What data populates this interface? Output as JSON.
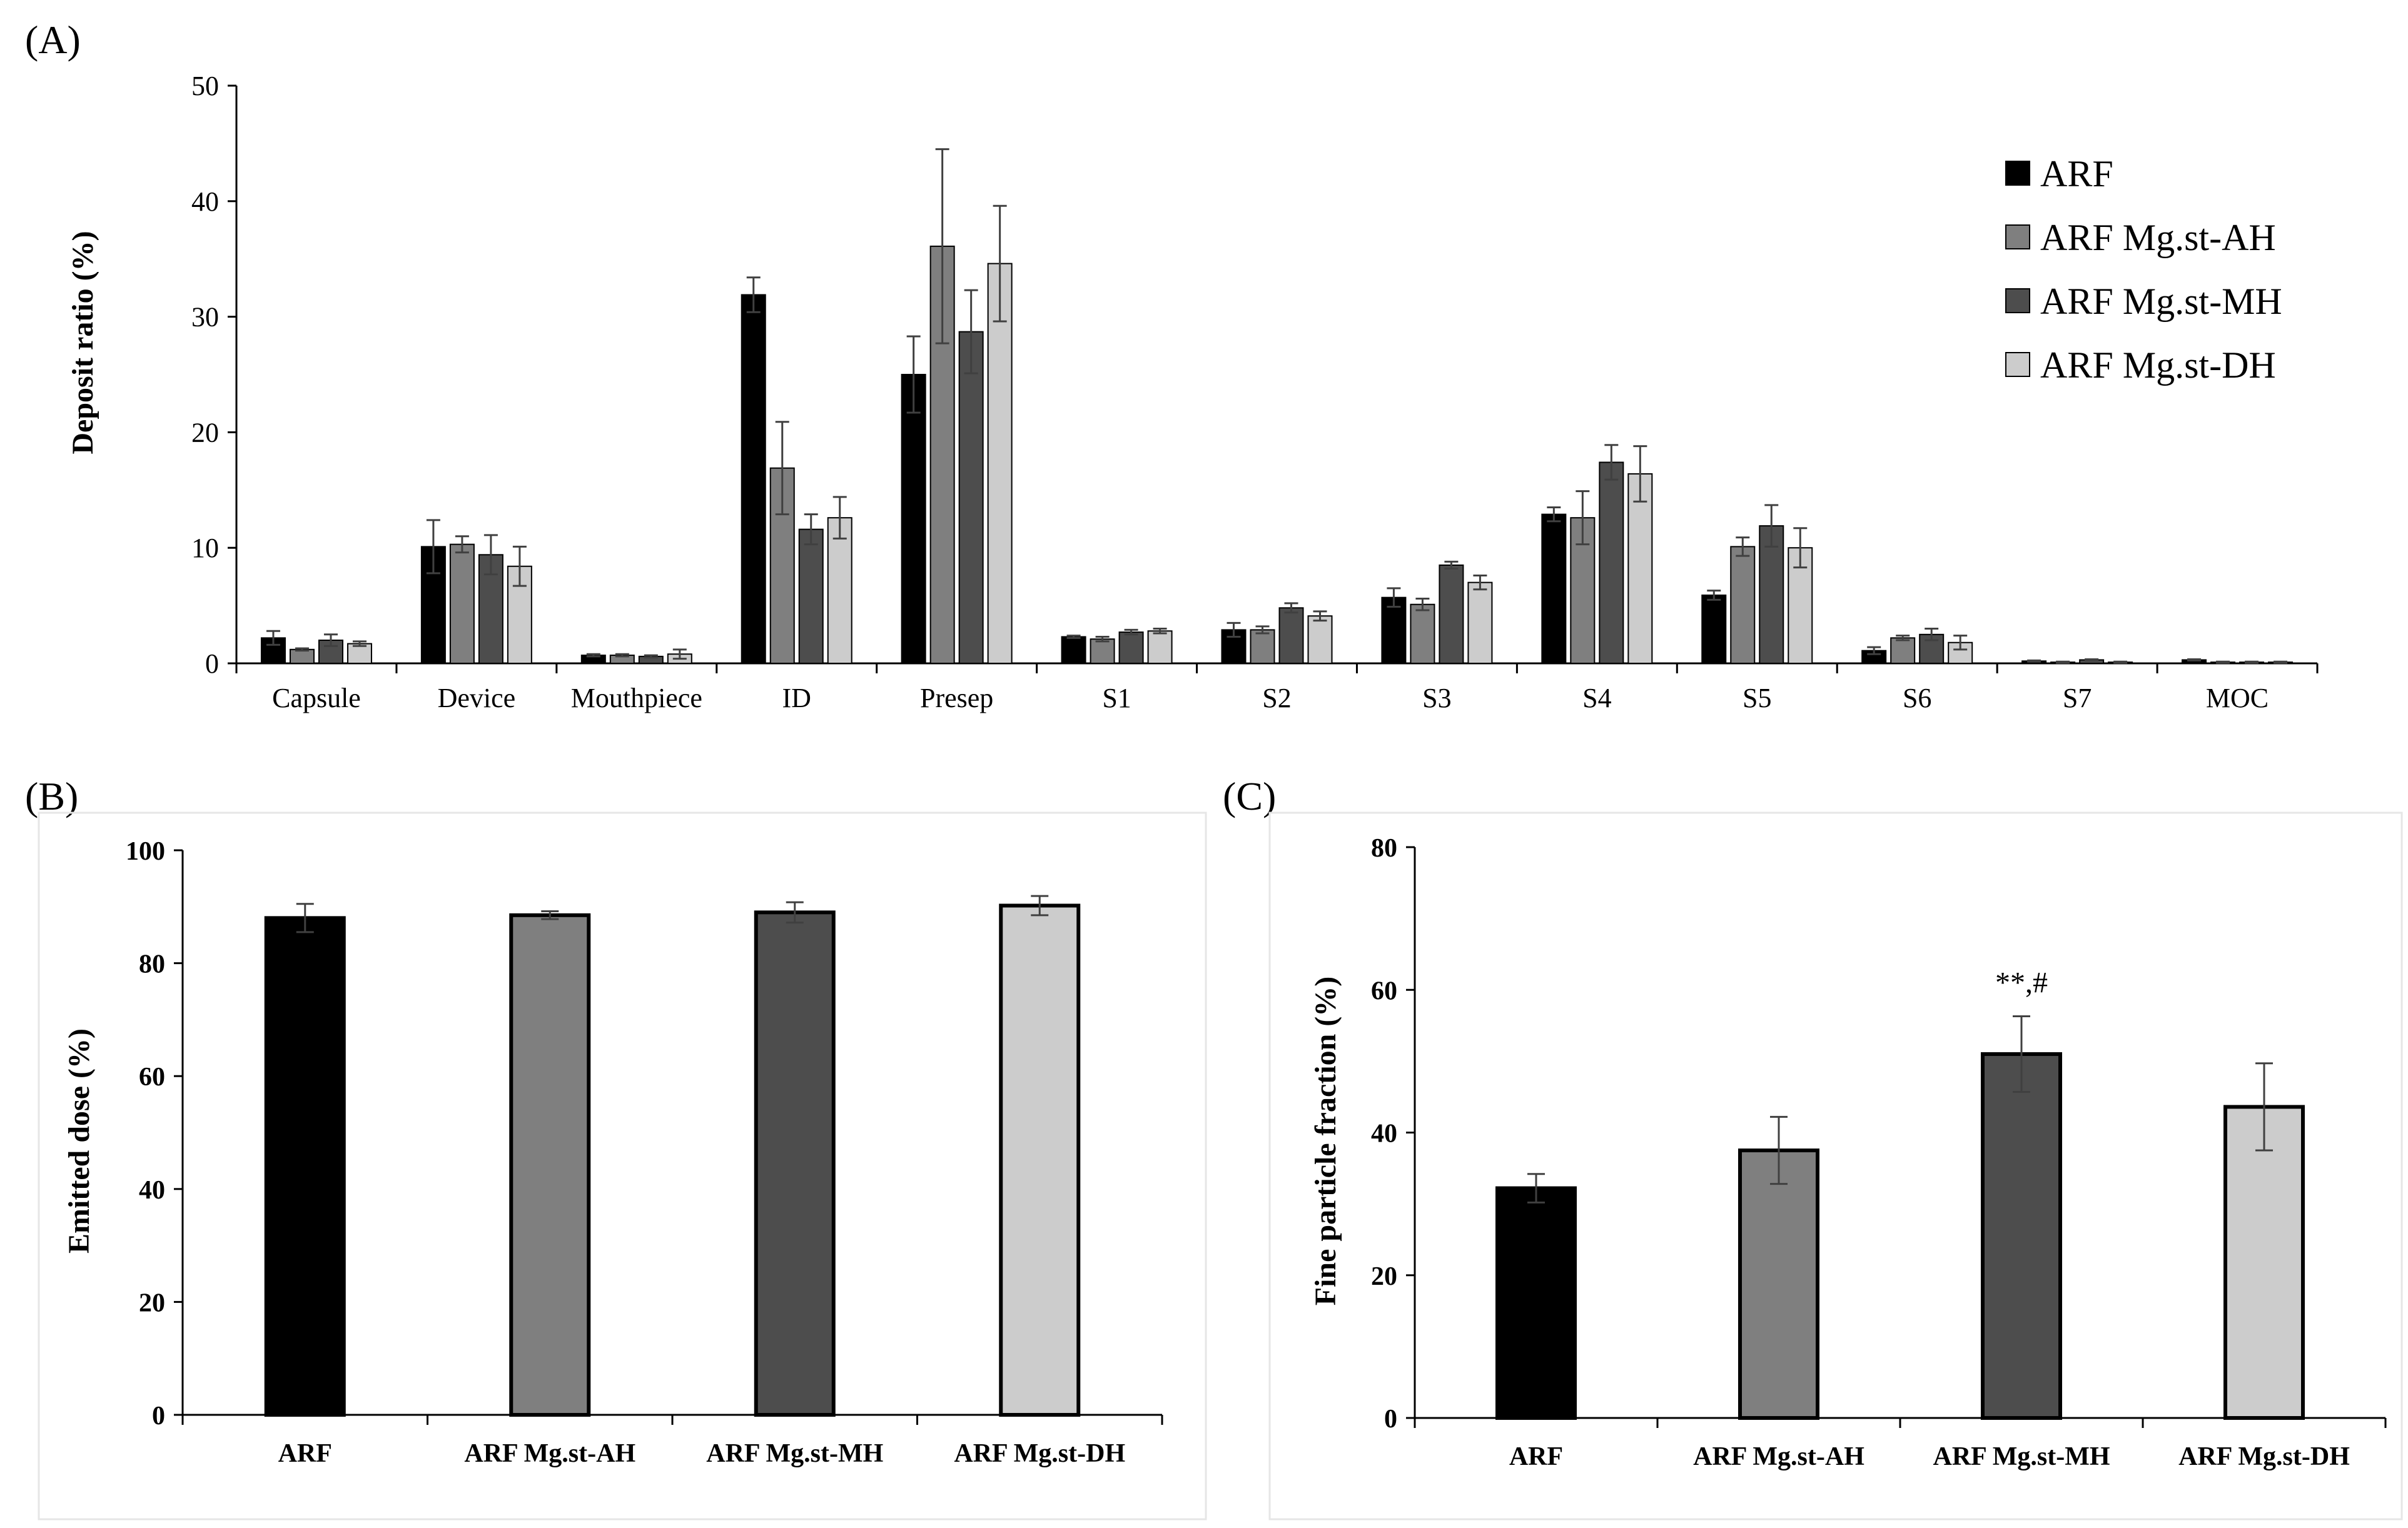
{
  "colors": {
    "ARF": "#000000",
    "AH": "#7f7f7f",
    "MH": "#4d4d4d",
    "DH": "#cccccc",
    "error": "#404040"
  },
  "chart_data": [
    {
      "panel": "(A)",
      "type": "bar",
      "title": "",
      "xlabel": "",
      "ylabel": "Deposit ratio (%)",
      "ylim": [
        0,
        50
      ],
      "yticks": [
        "0",
        "10",
        "20",
        "30",
        "40",
        "50"
      ],
      "categories": [
        "Capsule",
        "Device",
        "Mouthpiece",
        "ID",
        "Presep",
        "S1",
        "S2",
        "S3",
        "S4",
        "S5",
        "S6",
        "S7",
        "MOC"
      ],
      "legend_position": "top-right",
      "series": [
        {
          "name": "ARF",
          "color_key": "ARF",
          "values": [
            2.2,
            10.1,
            0.7,
            31.9,
            25.0,
            2.3,
            2.9,
            5.7,
            12.9,
            5.9,
            1.1,
            0.2,
            0.3
          ],
          "errors": [
            0.6,
            2.3,
            0.1,
            1.5,
            3.3,
            0.1,
            0.6,
            0.8,
            0.6,
            0.4,
            0.3,
            0.05,
            0.05
          ]
        },
        {
          "name": "ARF Mg.st-AH",
          "color_key": "AH",
          "values": [
            1.2,
            10.3,
            0.7,
            16.9,
            36.1,
            2.1,
            2.9,
            5.1,
            12.6,
            10.1,
            2.2,
            0.1,
            0.1
          ],
          "errors": [
            0.1,
            0.7,
            0.1,
            4.0,
            8.4,
            0.2,
            0.3,
            0.5,
            2.3,
            0.8,
            0.2,
            0.05,
            0.05
          ]
        },
        {
          "name": "ARF Mg.st-MH",
          "color_key": "MH",
          "values": [
            2.0,
            9.4,
            0.6,
            11.6,
            28.7,
            2.7,
            4.8,
            8.5,
            17.4,
            11.9,
            2.5,
            0.3,
            0.1
          ],
          "errors": [
            0.5,
            1.7,
            0.1,
            1.3,
            3.6,
            0.2,
            0.4,
            0.3,
            1.5,
            1.8,
            0.5,
            0.05,
            0.05
          ]
        },
        {
          "name": "ARF Mg.st-DH",
          "color_key": "DH",
          "values": [
            1.7,
            8.4,
            0.8,
            12.6,
            34.6,
            2.8,
            4.1,
            7.0,
            16.4,
            10.0,
            1.8,
            0.1,
            0.1
          ],
          "errors": [
            0.2,
            1.7,
            0.4,
            1.8,
            5.0,
            0.2,
            0.4,
            0.6,
            2.4,
            1.7,
            0.6,
            0.05,
            0.05
          ]
        }
      ]
    },
    {
      "panel": "(B)",
      "type": "bar",
      "title": "",
      "xlabel": "",
      "ylabel": "Emitted dose (%)",
      "ylim": [
        0,
        100
      ],
      "yticks": [
        "0",
        "20",
        "40",
        "60",
        "80",
        "100"
      ],
      "categories": [
        "ARF",
        "ARF Mg.st-AH",
        "ARF Mg.st-MH",
        "ARF Mg.st-DH"
      ],
      "color_keys": [
        "ARF",
        "AH",
        "MH",
        "DH"
      ],
      "values": [
        88.0,
        88.5,
        89.0,
        90.2
      ],
      "errors": [
        2.5,
        0.7,
        1.8,
        1.7
      ],
      "annotations": [
        "",
        "",
        "",
        ""
      ]
    },
    {
      "panel": "(C)",
      "type": "bar",
      "title": "",
      "xlabel": "",
      "ylabel": "Fine particle fraction (%)",
      "ylim": [
        0,
        80
      ],
      "yticks": [
        "0",
        "20",
        "40",
        "60",
        "80"
      ],
      "categories": [
        "ARF",
        "ARF Mg.st-AH",
        "ARF Mg.st-MH",
        "ARF Mg.st-DH"
      ],
      "color_keys": [
        "ARF",
        "AH",
        "MH",
        "DH"
      ],
      "values": [
        32.2,
        37.5,
        51.0,
        43.6
      ],
      "errors": [
        2.0,
        4.7,
        5.3,
        6.1
      ],
      "annotations": [
        "",
        "",
        "**,#",
        ""
      ]
    }
  ]
}
